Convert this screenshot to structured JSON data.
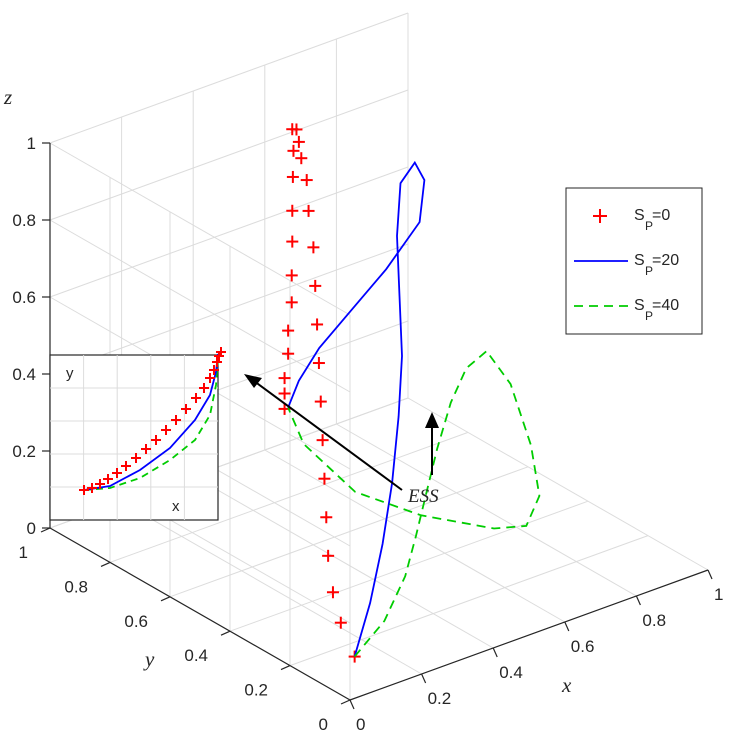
{
  "chart_data": {
    "type": "line",
    "title": "",
    "xlabel": "x",
    "ylabel": "y",
    "zlabel": "z",
    "xlim": [
      0,
      1
    ],
    "ylim": [
      0,
      1
    ],
    "zlim": [
      0,
      1
    ],
    "grid": true,
    "legend_position": "right",
    "ticks": {
      "x": [
        "0",
        "0.2",
        "0.4",
        "0.6",
        "0.8",
        "1"
      ],
      "y": [
        "0",
        "0.2",
        "0.4",
        "0.6",
        "0.8",
        "1"
      ],
      "z": [
        "0",
        "0.2",
        "0.4",
        "0.6",
        "0.8",
        "1"
      ]
    },
    "series": [
      {
        "name": "S",
        "subscript": "P",
        "value_label": "=0",
        "color": "#ff0000",
        "style": "plus-markers",
        "points": [
          [
            0.08,
            0.08,
            0.05
          ],
          [
            0.1,
            0.15,
            0.1
          ],
          [
            0.12,
            0.2,
            0.15
          ],
          [
            0.14,
            0.24,
            0.22
          ],
          [
            0.16,
            0.27,
            0.3
          ],
          [
            0.18,
            0.3,
            0.38
          ],
          [
            0.2,
            0.33,
            0.46
          ],
          [
            0.22,
            0.36,
            0.54
          ],
          [
            0.24,
            0.39,
            0.62
          ],
          [
            0.26,
            0.42,
            0.7
          ],
          [
            0.28,
            0.45,
            0.78
          ],
          [
            0.3,
            0.48,
            0.86
          ],
          [
            0.32,
            0.52,
            0.93
          ],
          [
            0.34,
            0.55,
            0.99
          ],
          [
            0.35,
            0.58,
            1.03
          ],
          [
            0.36,
            0.6,
            1.06
          ],
          [
            0.37,
            0.62,
            1.08
          ],
          [
            0.375,
            0.64,
            1.07
          ],
          [
            0.37,
            0.63,
            1.02
          ],
          [
            0.36,
            0.62,
            0.96
          ],
          [
            0.35,
            0.61,
            0.88
          ],
          [
            0.35,
            0.61,
            0.8
          ],
          [
            0.34,
            0.6,
            0.72
          ],
          [
            0.34,
            0.6,
            0.65
          ],
          [
            0.33,
            0.6,
            0.58
          ],
          [
            0.33,
            0.6,
            0.52
          ],
          [
            0.32,
            0.6,
            0.46
          ],
          [
            0.32,
            0.6,
            0.42
          ],
          [
            0.32,
            0.6,
            0.38
          ]
        ]
      },
      {
        "name": "S",
        "subscript": "P",
        "value_label": "=20",
        "color": "#0000ff",
        "style": "solid",
        "points": [
          [
            0.08,
            0.08,
            0.05
          ],
          [
            0.14,
            0.1,
            0.16
          ],
          [
            0.2,
            0.13,
            0.28
          ],
          [
            0.26,
            0.17,
            0.4
          ],
          [
            0.32,
            0.22,
            0.53
          ],
          [
            0.38,
            0.28,
            0.64
          ],
          [
            0.44,
            0.36,
            0.74
          ],
          [
            0.5,
            0.44,
            0.84
          ],
          [
            0.56,
            0.5,
            0.93
          ],
          [
            0.6,
            0.5,
            0.97
          ],
          [
            0.61,
            0.48,
            0.93
          ],
          [
            0.58,
            0.46,
            0.84
          ],
          [
            0.52,
            0.5,
            0.72
          ],
          [
            0.46,
            0.54,
            0.62
          ],
          [
            0.4,
            0.58,
            0.52
          ],
          [
            0.36,
            0.6,
            0.44
          ],
          [
            0.33,
            0.6,
            0.38
          ]
        ]
      },
      {
        "name": "S",
        "subscript": "P",
        "value_label": "=40",
        "color": "#00cc00",
        "style": "dashed",
        "points": [
          [
            0.08,
            0.08,
            0.05
          ],
          [
            0.18,
            0.1,
            0.1
          ],
          [
            0.28,
            0.15,
            0.16
          ],
          [
            0.36,
            0.21,
            0.21
          ],
          [
            0.44,
            0.27,
            0.27
          ],
          [
            0.52,
            0.33,
            0.33
          ],
          [
            0.6,
            0.38,
            0.4
          ],
          [
            0.66,
            0.4,
            0.46
          ],
          [
            0.7,
            0.38,
            0.5
          ],
          [
            0.7,
            0.3,
            0.45
          ],
          [
            0.69,
            0.22,
            0.33
          ],
          [
            0.68,
            0.18,
            0.22
          ],
          [
            0.66,
            0.2,
            0.14
          ],
          [
            0.62,
            0.26,
            0.12
          ],
          [
            0.5,
            0.36,
            0.15
          ],
          [
            0.4,
            0.46,
            0.2
          ],
          [
            0.34,
            0.56,
            0.3
          ],
          [
            0.33,
            0.6,
            0.38
          ]
        ]
      }
    ],
    "annotations": [
      {
        "text": "ESS",
        "point": [
          0.33,
          0.6,
          0.38
        ]
      }
    ],
    "inset": {
      "xlabel": "x",
      "ylabel": "y"
    }
  }
}
